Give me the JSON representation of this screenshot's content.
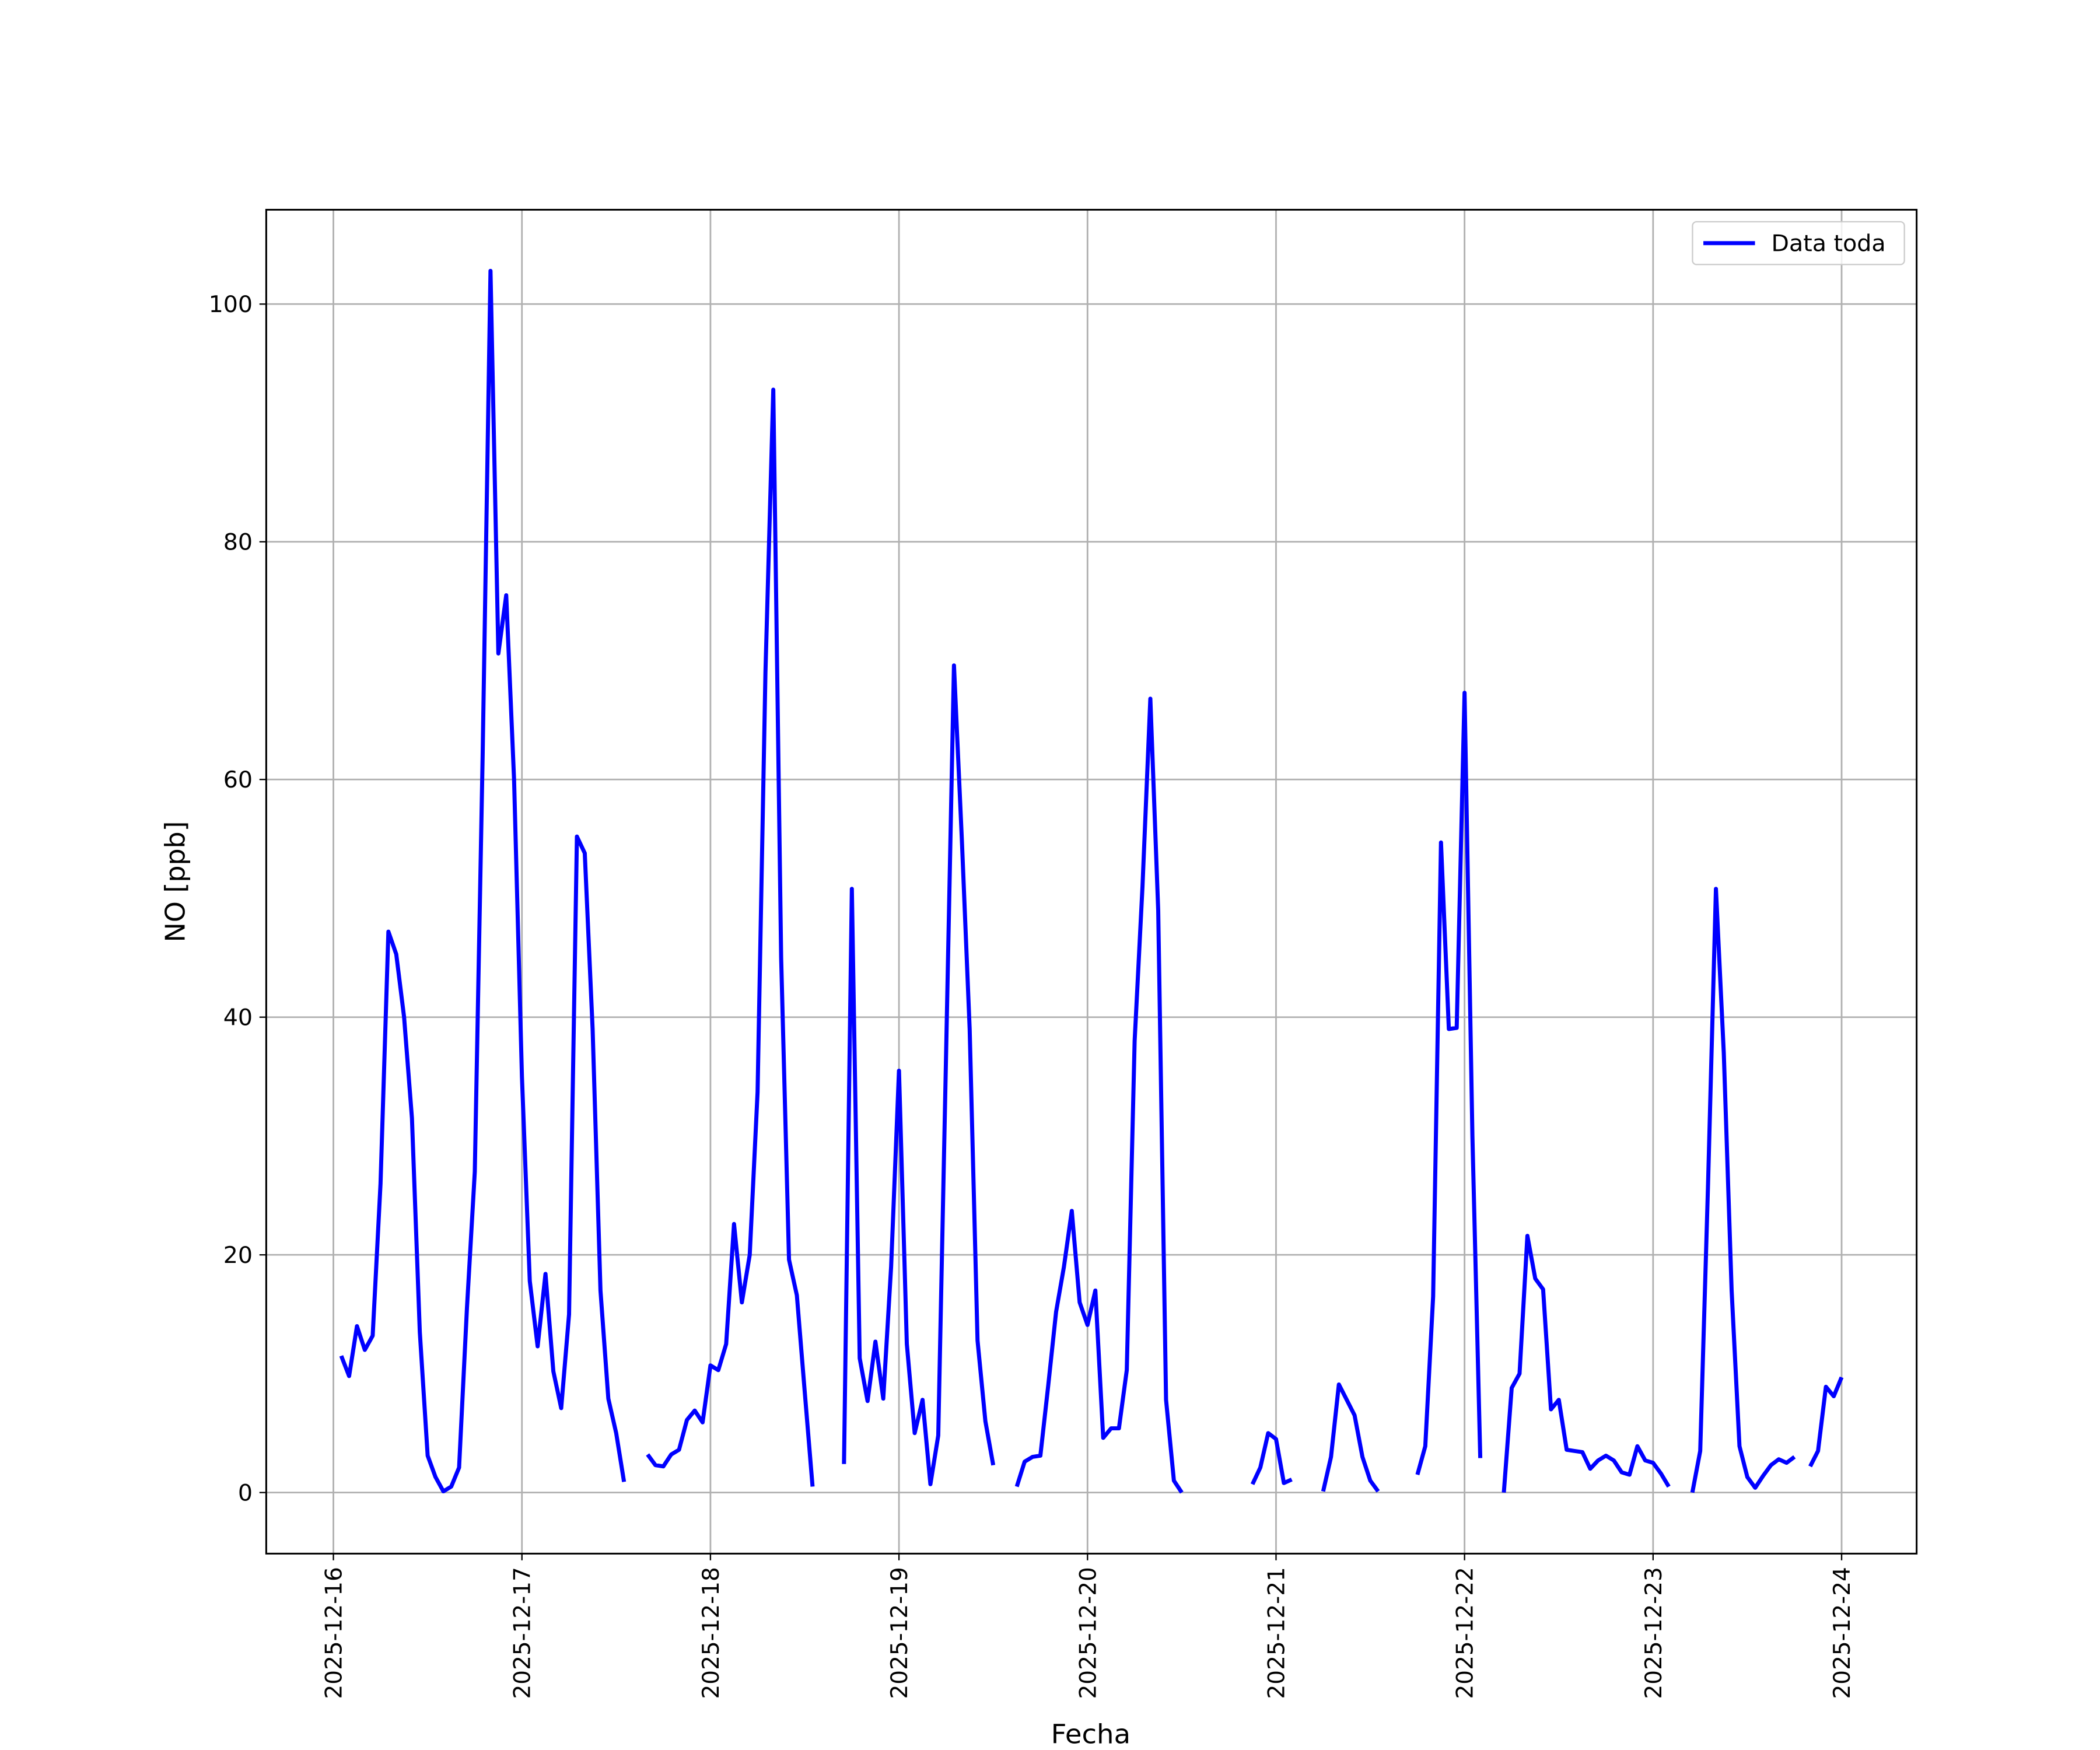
{
  "chart_data": {
    "type": "line",
    "xlabel": "Fecha",
    "ylabel": "NO [ppb]",
    "x": [
      "2025-12-16 01:00",
      "2025-12-16 02:00",
      "2025-12-16 03:00",
      "2025-12-16 04:00",
      "2025-12-16 05:00",
      "2025-12-16 06:00",
      "2025-12-16 07:00",
      "2025-12-16 08:00",
      "2025-12-16 09:00",
      "2025-12-16 10:00",
      "2025-12-16 11:00",
      "2025-12-16 12:00",
      "2025-12-16 13:00",
      "2025-12-16 14:00",
      "2025-12-16 15:00",
      "2025-12-16 16:00",
      "2025-12-16 17:00",
      "2025-12-16 18:00",
      "2025-12-16 19:00",
      "2025-12-16 20:00",
      "2025-12-16 21:00",
      "2025-12-16 22:00",
      "2025-12-16 23:00",
      "2025-12-17 00:00",
      "2025-12-17 01:00",
      "2025-12-17 02:00",
      "2025-12-17 03:00",
      "2025-12-17 04:00",
      "2025-12-17 05:00",
      "2025-12-17 06:00",
      "2025-12-17 07:00",
      "2025-12-17 08:00",
      "2025-12-17 09:00",
      "2025-12-17 10:00",
      "2025-12-17 11:00",
      "2025-12-17 12:00",
      "2025-12-17 13:00",
      "2025-12-17 14:00",
      "2025-12-17 15:00",
      "2025-12-17 16:00",
      "2025-12-17 17:00",
      "2025-12-17 18:00",
      "2025-12-17 19:00",
      "2025-12-17 20:00",
      "2025-12-17 21:00",
      "2025-12-17 22:00",
      "2025-12-17 23:00",
      "2025-12-18 00:00",
      "2025-12-18 01:00",
      "2025-12-18 02:00",
      "2025-12-18 03:00",
      "2025-12-18 04:00",
      "2025-12-18 05:00",
      "2025-12-18 06:00",
      "2025-12-18 07:00",
      "2025-12-18 08:00",
      "2025-12-18 09:00",
      "2025-12-18 10:00",
      "2025-12-18 11:00",
      "2025-12-18 12:00",
      "2025-12-18 13:00",
      "2025-12-18 14:00",
      "2025-12-18 15:00",
      "2025-12-18 16:00",
      "2025-12-18 17:00",
      "2025-12-18 18:00",
      "2025-12-18 19:00",
      "2025-12-18 20:00",
      "2025-12-18 21:00",
      "2025-12-18 22:00",
      "2025-12-18 23:00",
      "2025-12-19 00:00",
      "2025-12-19 01:00",
      "2025-12-19 02:00",
      "2025-12-19 03:00",
      "2025-12-19 04:00",
      "2025-12-19 05:00",
      "2025-12-19 06:00",
      "2025-12-19 07:00",
      "2025-12-19 08:00",
      "2025-12-19 09:00",
      "2025-12-19 10:00",
      "2025-12-19 11:00",
      "2025-12-19 12:00",
      "2025-12-19 13:00",
      "2025-12-19 14:00",
      "2025-12-19 15:00",
      "2025-12-19 16:00",
      "2025-12-19 17:00",
      "2025-12-19 18:00",
      "2025-12-19 19:00",
      "2025-12-19 20:00",
      "2025-12-19 21:00",
      "2025-12-19 22:00",
      "2025-12-19 23:00",
      "2025-12-20 00:00",
      "2025-12-20 01:00",
      "2025-12-20 02:00",
      "2025-12-20 03:00",
      "2025-12-20 04:00",
      "2025-12-20 05:00",
      "2025-12-20 06:00",
      "2025-12-20 07:00",
      "2025-12-20 08:00",
      "2025-12-20 09:00",
      "2025-12-20 10:00",
      "2025-12-20 11:00",
      "2025-12-20 12:00",
      "2025-12-20 13:00",
      "2025-12-20 14:00",
      "2025-12-20 15:00",
      "2025-12-20 16:00",
      "2025-12-20 17:00",
      "2025-12-20 18:00",
      "2025-12-20 19:00",
      "2025-12-20 20:00",
      "2025-12-20 21:00",
      "2025-12-20 22:00",
      "2025-12-20 23:00",
      "2025-12-21 00:00",
      "2025-12-21 01:00",
      "2025-12-21 02:00",
      "2025-12-21 03:00",
      "2025-12-21 04:00",
      "2025-12-21 05:00",
      "2025-12-21 06:00",
      "2025-12-21 07:00",
      "2025-12-21 08:00",
      "2025-12-21 09:00",
      "2025-12-21 10:00",
      "2025-12-21 11:00",
      "2025-12-21 12:00",
      "2025-12-21 13:00",
      "2025-12-21 14:00",
      "2025-12-21 15:00",
      "2025-12-21 16:00",
      "2025-12-21 17:00",
      "2025-12-21 18:00",
      "2025-12-21 19:00",
      "2025-12-21 20:00",
      "2025-12-21 21:00",
      "2025-12-21 22:00",
      "2025-12-21 23:00",
      "2025-12-22 00:00",
      "2025-12-22 01:00",
      "2025-12-22 02:00",
      "2025-12-22 03:00",
      "2025-12-22 04:00",
      "2025-12-22 05:00",
      "2025-12-22 06:00",
      "2025-12-22 07:00",
      "2025-12-22 08:00",
      "2025-12-22 09:00",
      "2025-12-22 10:00",
      "2025-12-22 11:00",
      "2025-12-22 12:00",
      "2025-12-22 13:00",
      "2025-12-22 14:00",
      "2025-12-22 15:00",
      "2025-12-22 16:00",
      "2025-12-22 17:00",
      "2025-12-22 18:00",
      "2025-12-22 19:00",
      "2025-12-22 20:00",
      "2025-12-22 21:00",
      "2025-12-22 22:00",
      "2025-12-22 23:00",
      "2025-12-23 00:00",
      "2025-12-23 01:00",
      "2025-12-23 02:00",
      "2025-12-23 03:00",
      "2025-12-23 04:00",
      "2025-12-23 05:00",
      "2025-12-23 06:00",
      "2025-12-23 07:00",
      "2025-12-23 08:00",
      "2025-12-23 09:00",
      "2025-12-23 10:00",
      "2025-12-23 11:00",
      "2025-12-23 12:00",
      "2025-12-23 13:00",
      "2025-12-23 14:00",
      "2025-12-23 15:00",
      "2025-12-23 16:00",
      "2025-12-23 17:00",
      "2025-12-23 18:00",
      "2025-12-23 19:00",
      "2025-12-23 20:00",
      "2025-12-23 21:00",
      "2025-12-23 22:00",
      "2025-12-23 23:00",
      "2025-12-24 00:00"
    ],
    "series": [
      {
        "name": "Data toda",
        "color": "#0000ff",
        "values": [
          11.5,
          9.8,
          14,
          12,
          13.2,
          26,
          47.2,
          45.3,
          40,
          31.5,
          13.5,
          3.1,
          1.3,
          0.1,
          0.5,
          2.1,
          15.5,
          27,
          62,
          102.8,
          70.6,
          75.5,
          60,
          35,
          17.8,
          12.3,
          18.4,
          10.2,
          7.1,
          15,
          55.2,
          53.8,
          39,
          17,
          7.9,
          5,
          0.9,
          null,
          null,
          3.2,
          2.3,
          2.2,
          3.2,
          3.6,
          6.1,
          6.9,
          5.9,
          10.7,
          10.3,
          12.5,
          22.6,
          16,
          20,
          33.7,
          69,
          92.8,
          45,
          19.6,
          16.6,
          8.5,
          0.5,
          null,
          null,
          null,
          2.4,
          50.8,
          11.3,
          7.7,
          12.7,
          7.9,
          19,
          35.5,
          12.5,
          5,
          7.8,
          0.7,
          4.8,
          37,
          69.6,
          55,
          39,
          12.8,
          6,
          2.3,
          null,
          null,
          0.5,
          2.6,
          3,
          3.1,
          9,
          15.2,
          19,
          23.7,
          16,
          14.1,
          17,
          4.6,
          5.4,
          5.4,
          10.3,
          38,
          51,
          66.8,
          49,
          7.8,
          1,
          0,
          null,
          null,
          null,
          null,
          null,
          null,
          null,
          null,
          0.7,
          2.1,
          5,
          4.5,
          0.8,
          1.1,
          null,
          null,
          null,
          0.1,
          3,
          9.1,
          7.8,
          6.5,
          3,
          1,
          0.1,
          null,
          null,
          null,
          null,
          1.5,
          3.9,
          16.5,
          54.7,
          39,
          39.1,
          67.3,
          30,
          2.9,
          null,
          null,
          0,
          8.8,
          10,
          21.6,
          18,
          17.1,
          7,
          7.8,
          3.6,
          3.5,
          3.4,
          2,
          2.7,
          3.1,
          2.7,
          1.7,
          1.5,
          3.9,
          2.7,
          2.5,
          1.6,
          0.5,
          null,
          null,
          0,
          3.5,
          26,
          50.8,
          37,
          17,
          3.9,
          1.3,
          0.4,
          1.4,
          2.3,
          2.8,
          2.5,
          3,
          null,
          2.2,
          3.5,
          8.9,
          8.1,
          9.7
        ]
      }
    ],
    "xlim": [
      "2025-12-15 15:27",
      "2025-12-24 09:33"
    ],
    "xticks": [
      "2025-12-16",
      "2025-12-17",
      "2025-12-18",
      "2025-12-19",
      "2025-12-20",
      "2025-12-21",
      "2025-12-22",
      "2025-12-23",
      "2025-12-24"
    ],
    "ylim": [
      -5.14,
      107.94
    ],
    "yticks": [
      0,
      20,
      40,
      60,
      80,
      100
    ],
    "grid": true,
    "legend": "upper right"
  }
}
